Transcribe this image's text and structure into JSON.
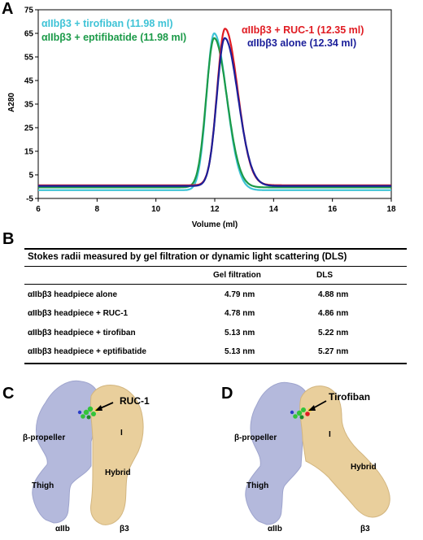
{
  "panels": {
    "a": "A",
    "b": "B",
    "c": "C",
    "d": "D"
  },
  "chart_data": {
    "type": "line",
    "xlabel": "Volume (ml)",
    "ylabel": "A280",
    "xlim": [
      6,
      18
    ],
    "ylim": [
      -5,
      75
    ],
    "xticks": [
      "6",
      "8",
      "10",
      "12",
      "14",
      "16",
      "18"
    ],
    "yticks": [
      "-5",
      "5",
      "15",
      "25",
      "35",
      "45",
      "55",
      "65",
      "75"
    ],
    "legend_placement": "in-plot labels",
    "series": [
      {
        "name": "αIIbβ3 + tirofiban (11.98 ml)",
        "color": "#3ec3d6",
        "peak_x": 11.98,
        "peak_y": 65,
        "baseline": -1.5,
        "sigma_left": 0.26,
        "sigma_right": 0.42
      },
      {
        "name": "αIIbβ3 + eptifibatide (11.98 ml)",
        "color": "#1b9a48",
        "peak_x": 11.98,
        "peak_y": 63,
        "baseline": -0.3,
        "sigma_left": 0.27,
        "sigma_right": 0.43
      },
      {
        "name": "αIIbβ3 + RUC-1 (12.35 ml)",
        "color": "#e01b22",
        "peak_x": 12.35,
        "peak_y": 67,
        "baseline": 0.6,
        "sigma_left": 0.27,
        "sigma_right": 0.43
      },
      {
        "name": "αIIbβ3 alone (12.34 ml)",
        "color": "#1b1f9a",
        "peak_x": 12.34,
        "peak_y": 63,
        "baseline": 0.3,
        "sigma_left": 0.27,
        "sigma_right": 0.45
      }
    ]
  },
  "table": {
    "title": "Stokes radii measured by gel filtration or dynamic light scattering (DLS)",
    "headers": [
      "",
      "Gel filtration",
      "DLS"
    ],
    "rows": [
      [
        "αIIbβ3 headpiece alone",
        "4.79 nm",
        "4.88 nm"
      ],
      [
        "αIIbβ3 headpiece + RUC-1",
        "4.78 nm",
        "4.86 nm"
      ],
      [
        "αIIbβ3 headpiece + tirofiban",
        "5.13 nm",
        "5.22 nm"
      ],
      [
        "αIIbβ3 headpiece + eptifibatide",
        "5.13 nm",
        "5.27 nm"
      ]
    ]
  },
  "structure_c": {
    "ligand_label": "RUC-1",
    "propeller_label": "β-propeller",
    "i_label": "I",
    "hybrid_label": "Hybrid",
    "thigh_label": "Thigh",
    "aiib_label": "αIIb",
    "b3_label": "β3"
  },
  "structure_d": {
    "ligand_label": "Tirofiban",
    "propeller_label": "β-propeller",
    "i_label": "I",
    "hybrid_label": "Hybrid",
    "thigh_label": "Thigh",
    "aiib_label": "αIIb",
    "b3_label": "β3"
  },
  "colors": {
    "aiib_surface": "#b4b9dc",
    "b3_surface": "#e9cf9c",
    "ligand_green": "#33c43a",
    "ligand_yellow": "#f3d33a"
  }
}
